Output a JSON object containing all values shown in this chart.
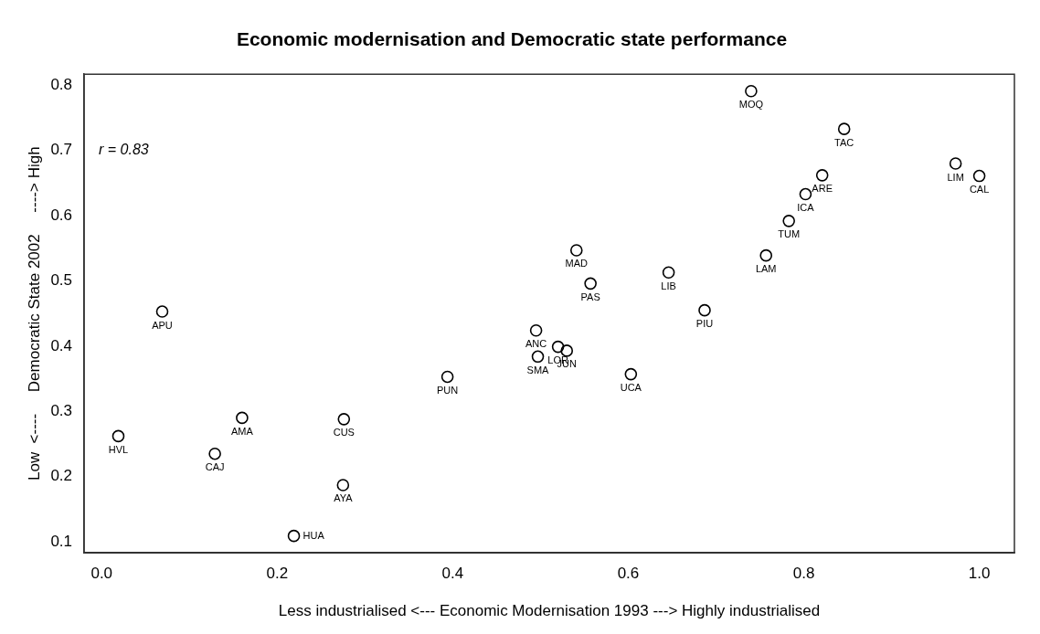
{
  "chart_data": {
    "type": "scatter",
    "title": "Economic modernisation and Democratic state performance",
    "xlabel": "Less industrialised <--- Economic Modernisation 1993 ---> Highly industrialised",
    "ylabel": "Low  <----     Democratic State 2002     ----> High",
    "x": [
      0.019,
      0.069,
      0.129,
      0.16,
      0.219,
      0.275,
      0.276,
      0.394,
      0.495,
      0.497,
      0.52,
      0.53,
      0.541,
      0.557,
      0.603,
      0.646,
      0.687,
      0.74,
      0.757,
      0.783,
      0.802,
      0.821,
      0.846,
      0.973,
      1.0
    ],
    "values": [
      0.262,
      0.453,
      0.235,
      0.29,
      0.109,
      0.187,
      0.288,
      0.353,
      0.424,
      0.384,
      0.399,
      0.393,
      0.547,
      0.496,
      0.357,
      0.513,
      0.455,
      0.791,
      0.539,
      0.592,
      0.633,
      0.662,
      0.733,
      0.68,
      0.661
    ],
    "color": "#000000",
    "marker": "circle",
    "grid": false,
    "legend": false,
    "xlim": [
      -0.02,
      1.04
    ],
    "xticks": [
      {
        "value": 0,
        "label": "0.0"
      },
      0.2,
      0.4,
      0.6,
      0.8,
      {
        "value": 1,
        "label": "1.0"
      }
    ],
    "ylim": [
      0.083,
      0.817
    ],
    "yticks": [
      0.1,
      0.2,
      0.3,
      0.4,
      0.5,
      0.6,
      0.7,
      0.8
    ],
    "annotations": [
      "r = 0.83",
      {
        "text": "HVL",
        "x": 0.019,
        "y": 0.262
      },
      {
        "text": "APU",
        "x": 0.069,
        "y": 0.453
      },
      {
        "text": "CAJ",
        "x": 0.129,
        "y": 0.235
      },
      {
        "text": "AMA",
        "x": 0.16,
        "y": 0.29
      },
      {
        "text": "HUA",
        "x": 0.219,
        "y": 0.109
      },
      {
        "text": "AYA",
        "x": 0.275,
        "y": 0.187
      },
      {
        "text": "CUS",
        "x": 0.276,
        "y": 0.288
      },
      {
        "text": "PUN",
        "x": 0.394,
        "y": 0.353
      },
      {
        "text": "ANC",
        "x": 0.495,
        "y": 0.424
      },
      {
        "text": "SMA",
        "x": 0.497,
        "y": 0.384
      },
      {
        "text": "LOR",
        "x": 0.52,
        "y": 0.399
      },
      {
        "text": "JUN",
        "x": 0.53,
        "y": 0.393
      },
      {
        "text": "MAD",
        "x": 0.541,
        "y": 0.547
      },
      {
        "text": "PAS",
        "x": 0.557,
        "y": 0.496
      },
      {
        "text": "UCA",
        "x": 0.603,
        "y": 0.357
      },
      {
        "text": "LIB",
        "x": 0.646,
        "y": 0.513
      },
      {
        "text": "PIU",
        "x": 0.687,
        "y": 0.455
      },
      {
        "text": "MOQ",
        "x": 0.74,
        "y": 0.791
      },
      {
        "text": "LAM",
        "x": 0.757,
        "y": 0.539
      },
      {
        "text": "TUM",
        "x": 0.783,
        "y": 0.592
      },
      {
        "text": "ICA",
        "x": 0.802,
        "y": 0.633
      },
      {
        "text": "ARE",
        "x": 0.821,
        "y": 0.662
      },
      {
        "text": "TAC",
        "x": 0.846,
        "y": 0.733
      },
      {
        "text": "LIM",
        "x": 0.973,
        "y": 0.68
      },
      {
        "text": "CAL",
        "x": 1.0,
        "y": 0.661
      }
    ]
  }
}
